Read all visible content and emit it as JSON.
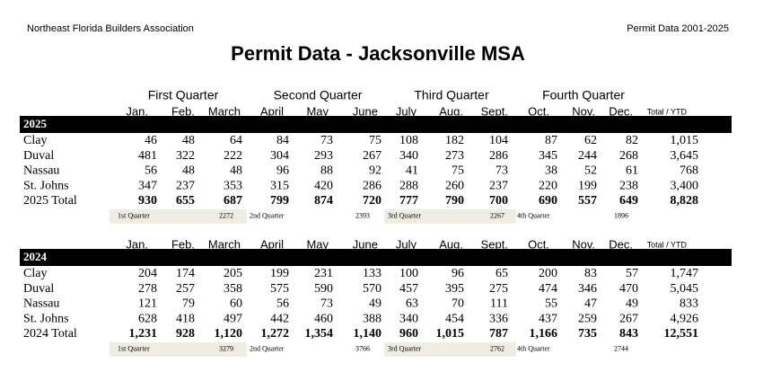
{
  "header": {
    "left": "Northeast Florida Builders Association",
    "right": "Permit Data 2001-2025",
    "title": "Permit Data - Jacksonville MSA"
  },
  "quarters": [
    "First Quarter",
    "Second Quarter",
    "Third Quarter",
    "Fourth Quarter"
  ],
  "sections": [
    {
      "months": [
        "Jan.",
        "Feb.",
        "March",
        "April",
        "May",
        "June",
        "July",
        "Aug.",
        "Sept.",
        "Oct.",
        "Nov.",
        "Dec.",
        "Total / YTD"
      ],
      "year": "2025",
      "rows": [
        {
          "label": "Clay",
          "values": [
            "46",
            "48",
            "64",
            "84",
            "73",
            "75",
            "108",
            "182",
            "104",
            "87",
            "62",
            "82",
            "1,015"
          ]
        },
        {
          "label": "Duval",
          "values": [
            "481",
            "322",
            "222",
            "304",
            "293",
            "267",
            "340",
            "273",
            "286",
            "345",
            "244",
            "268",
            "3,645"
          ]
        },
        {
          "label": "Nassau",
          "values": [
            "56",
            "48",
            "48",
            "96",
            "88",
            "92",
            "41",
            "75",
            "73",
            "38",
            "52",
            "61",
            "768"
          ]
        },
        {
          "label": "St. Johns",
          "values": [
            "347",
            "237",
            "353",
            "315",
            "420",
            "286",
            "288",
            "260",
            "237",
            "220",
            "199",
            "238",
            "3,400"
          ]
        }
      ],
      "total": {
        "label": "2025 Total",
        "values": [
          "930",
          "655",
          "687",
          "799",
          "874",
          "720",
          "777",
          "790",
          "700",
          "690",
          "557",
          "649",
          "8,828"
        ]
      },
      "quarter_totals": [
        {
          "label": "1st Quarter",
          "value": "2272"
        },
        {
          "label": "2nd Quarter",
          "value": "2393"
        },
        {
          "label": "3rd Quarter",
          "value": "2267"
        },
        {
          "label": "4th Quarter",
          "value": "1896"
        }
      ]
    },
    {
      "months": [
        "Jan.",
        "Feb.",
        "March",
        "April",
        "May",
        "June",
        "July",
        "Aug.",
        "Sept.",
        "Oct.",
        "Nov.",
        "Dec.",
        "Total / YTD"
      ],
      "year": "2024",
      "rows": [
        {
          "label": "Clay",
          "values": [
            "204",
            "174",
            "205",
            "199",
            "231",
            "133",
            "100",
            "96",
            "65",
            "200",
            "83",
            "57",
            "1,747"
          ]
        },
        {
          "label": "Duval",
          "values": [
            "278",
            "257",
            "358",
            "575",
            "590",
            "570",
            "457",
            "395",
            "275",
            "474",
            "346",
            "470",
            "5,045"
          ]
        },
        {
          "label": "Nassau",
          "values": [
            "121",
            "79",
            "60",
            "56",
            "73",
            "49",
            "63",
            "70",
            "111",
            "55",
            "47",
            "49",
            "833"
          ]
        },
        {
          "label": "St. Johns",
          "values": [
            "628",
            "418",
            "497",
            "442",
            "460",
            "388",
            "340",
            "454",
            "336",
            "437",
            "259",
            "267",
            "4,926"
          ]
        }
      ],
      "total": {
        "label": "2024 Total",
        "values": [
          "1,231",
          "928",
          "1,120",
          "1,272",
          "1,354",
          "1,140",
          "960",
          "1,015",
          "787",
          "1,166",
          "735",
          "843",
          "12,551"
        ]
      },
      "quarter_totals": [
        {
          "label": "1st Quarter",
          "value": "3279"
        },
        {
          "label": "2nd Quarter",
          "value": "3766"
        },
        {
          "label": "3rd Quarter",
          "value": "2762"
        },
        {
          "label": "4th Quarter",
          "value": "2744"
        }
      ]
    }
  ]
}
